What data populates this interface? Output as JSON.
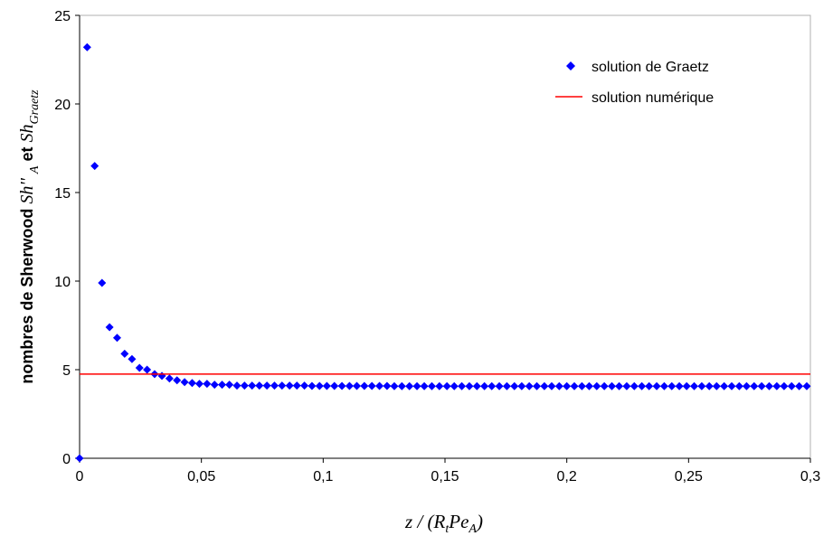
{
  "chart_data": {
    "type": "scatter",
    "title": "",
    "xlim": [
      0,
      0.3
    ],
    "ylim": [
      0,
      25
    ],
    "x_ticks": [
      0,
      0.05,
      0.1,
      0.15,
      0.2,
      0.25,
      0.3
    ],
    "x_tick_labels": [
      "0",
      "0,05",
      "0,1",
      "0,15",
      "0,2",
      "0,25",
      "0,3"
    ],
    "y_ticks": [
      0,
      5,
      10,
      15,
      20,
      25
    ],
    "y_tick_labels": [
      "0",
      "5",
      "10",
      "15",
      "20",
      "25"
    ],
    "grid": false,
    "legend_position": "top-right",
    "xlabel": {
      "prefix": "z / (R",
      "sub1": "t",
      "mid": "Pe",
      "sub2": "A",
      "suffix": ")"
    },
    "ylabel": {
      "prefix": "nombres de Sherwood ",
      "sh1": "Sh'' ",
      "sh1_sub": "A",
      "and": " et ",
      "sh2": "Sh",
      "sh2_sub": "Graetz"
    },
    "series": [
      {
        "name": "solution de Graetz",
        "kind": "marker",
        "marker": "diamond",
        "color": "#0000ff",
        "x": [
          0,
          0.0031,
          0.0062,
          0.0092,
          0.0123,
          0.0154,
          0.0185,
          0.0215,
          0.0246,
          0.0277,
          0.0308,
          0.0338,
          0.0369,
          0.04,
          0.0431,
          0.0462,
          0.0492,
          0.0523,
          0.0554,
          0.0585,
          0.0615,
          0.0646,
          0.0677,
          0.0708,
          0.0738,
          0.0769,
          0.08,
          0.0831,
          0.0862,
          0.0892,
          0.0923,
          0.0954,
          0.0985,
          0.1015,
          0.1046,
          0.1077,
          0.1108,
          0.1138,
          0.1169,
          0.12,
          0.1231,
          0.1262,
          0.1292,
          0.1323,
          0.1354,
          0.1385,
          0.1415,
          0.1446,
          0.1477,
          0.1508,
          0.1538,
          0.1569,
          0.16,
          0.1631,
          0.1662,
          0.1692,
          0.1723,
          0.1754,
          0.1785,
          0.1815,
          0.1846,
          0.1877,
          0.1908,
          0.1938,
          0.1969,
          0.2,
          0.2031,
          0.2062,
          0.2092,
          0.2123,
          0.2154,
          0.2185,
          0.2215,
          0.2246,
          0.2277,
          0.2308,
          0.2338,
          0.2369,
          0.24,
          0.2431,
          0.2462,
          0.2492,
          0.2523,
          0.2554,
          0.2585,
          0.2615,
          0.2646,
          0.2677,
          0.2708,
          0.2738,
          0.2769,
          0.28,
          0.2831,
          0.2862,
          0.2892,
          0.2923,
          0.2954,
          0.2985
        ],
        "y": [
          0,
          23.2,
          16.5,
          9.9,
          7.4,
          6.8,
          5.9,
          5.6,
          5.1,
          5.0,
          4.75,
          4.65,
          4.5,
          4.4,
          4.3,
          4.25,
          4.2,
          4.2,
          4.15,
          4.15,
          4.15,
          4.1,
          4.1,
          4.1,
          4.1,
          4.1,
          4.1,
          4.1,
          4.1,
          4.1,
          4.1,
          4.08,
          4.08,
          4.08,
          4.08,
          4.08,
          4.08,
          4.08,
          4.08,
          4.08,
          4.08,
          4.08,
          4.07,
          4.07,
          4.07,
          4.07,
          4.07,
          4.07,
          4.07,
          4.07,
          4.07,
          4.07,
          4.07,
          4.07,
          4.07,
          4.07,
          4.07,
          4.07,
          4.07,
          4.07,
          4.07,
          4.07,
          4.07,
          4.07,
          4.07,
          4.07,
          4.07,
          4.07,
          4.07,
          4.07,
          4.07,
          4.07,
          4.07,
          4.07,
          4.07,
          4.07,
          4.07,
          4.07,
          4.07,
          4.07,
          4.07,
          4.07,
          4.07,
          4.07,
          4.07,
          4.07,
          4.07,
          4.07,
          4.07,
          4.07,
          4.07,
          4.07,
          4.07,
          4.07,
          4.07,
          4.07,
          4.07,
          4.07
        ]
      },
      {
        "name": "solution numérique",
        "kind": "line",
        "color": "#ff0000",
        "x": [
          0,
          0.3
        ],
        "y": [
          4.75,
          4.75
        ]
      }
    ]
  }
}
